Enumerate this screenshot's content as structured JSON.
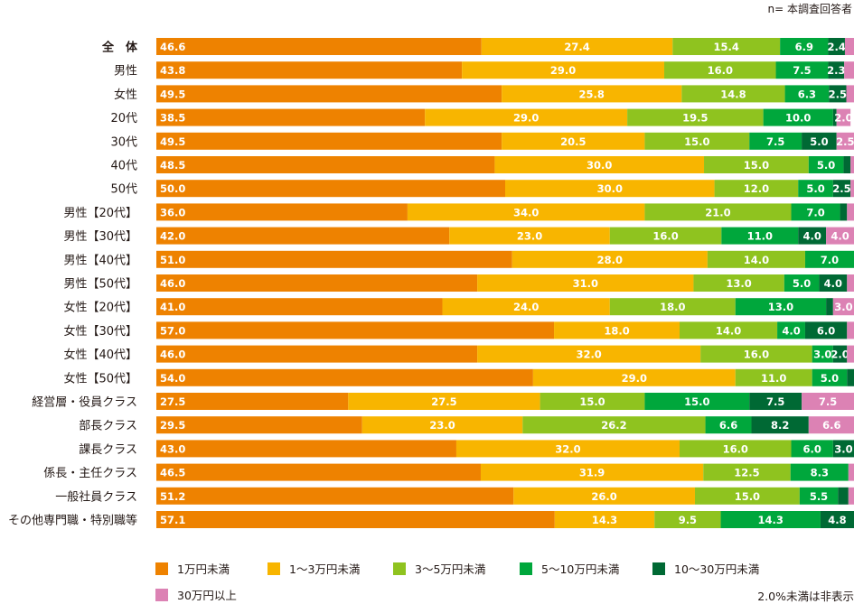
{
  "note_n": "n= 本調査回答者",
  "note_hidden": "2.0%未満は非表示",
  "chart_data": {
    "type": "bar",
    "orientation": "horizontal",
    "stacked": true,
    "xlim": [
      0,
      100
    ],
    "unit": "%",
    "label_threshold": 2.0,
    "categories": [
      "全　体",
      "男性",
      "女性",
      "20代",
      "30代",
      "40代",
      "50代",
      "男性【20代】",
      "男性【30代】",
      "男性【40代】",
      "男性【50代】",
      "女性【20代】",
      "女性【30代】",
      "女性【40代】",
      "女性【50代】",
      "経営層・役員クラス",
      "部長クラス",
      "課長クラス",
      "係長・主任クラス",
      "一般社員クラス",
      "その他専門職・特別職等"
    ],
    "series": [
      {
        "name": "1万円未満",
        "color": "#ee8200",
        "values": [
          46.6,
          43.8,
          49.5,
          38.5,
          49.5,
          48.5,
          50.0,
          36.0,
          42.0,
          51.0,
          46.0,
          41.0,
          57.0,
          46.0,
          54.0,
          27.5,
          29.5,
          43.0,
          46.5,
          51.2,
          57.1
        ]
      },
      {
        "name": "1〜3万円未満",
        "color": "#f8b500",
        "values": [
          27.4,
          29.0,
          25.8,
          29.0,
          20.5,
          30.0,
          30.0,
          34.0,
          23.0,
          28.0,
          31.0,
          24.0,
          18.0,
          32.0,
          29.0,
          27.5,
          23.0,
          32.0,
          31.9,
          26.0,
          14.3
        ]
      },
      {
        "name": "3〜5万円未満",
        "color": "#8fc31f",
        "values": [
          15.4,
          16.0,
          14.8,
          19.5,
          15.0,
          15.0,
          12.0,
          21.0,
          16.0,
          14.0,
          13.0,
          18.0,
          14.0,
          16.0,
          11.0,
          15.0,
          26.2,
          16.0,
          12.5,
          15.0,
          9.5
        ]
      },
      {
        "name": "5〜10万円未満",
        "color": "#00a73c",
        "values": [
          6.9,
          7.5,
          6.3,
          10.0,
          7.5,
          5.0,
          5.0,
          7.0,
          11.0,
          7.0,
          5.0,
          13.0,
          4.0,
          3.0,
          5.0,
          15.0,
          6.6,
          6.0,
          8.3,
          5.5,
          14.3
        ]
      },
      {
        "name": "10〜30万円未満",
        "color": "#006934",
        "values": [
          2.4,
          2.3,
          2.5,
          0.5,
          5.0,
          1.0,
          2.5,
          1.0,
          4.0,
          0.0,
          4.0,
          1.0,
          6.0,
          2.0,
          1.0,
          7.5,
          8.2,
          3.0,
          0.0,
          1.5,
          4.8
        ]
      },
      {
        "name": "30万円以上",
        "color": "#dc82b4",
        "values": [
          1.3,
          1.4,
          1.1,
          2.0,
          2.5,
          0.5,
          0.5,
          1.0,
          4.0,
          0.0,
          1.0,
          3.0,
          1.0,
          1.0,
          0.0,
          7.5,
          6.6,
          0.0,
          0.8,
          0.8,
          0.0
        ]
      }
    ],
    "legend_position": "bottom-left"
  }
}
